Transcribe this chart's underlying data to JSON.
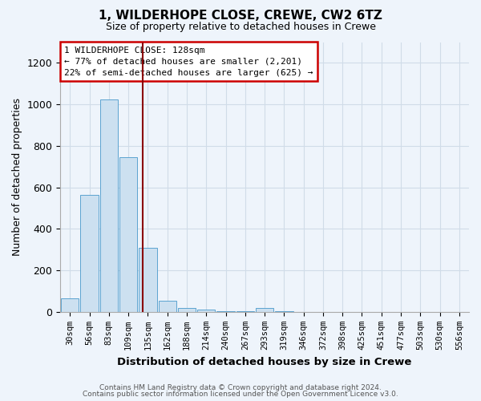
{
  "title1": "1, WILDERHOPE CLOSE, CREWE, CW2 6TZ",
  "title2": "Size of property relative to detached houses in Crewe",
  "xlabel": "Distribution of detached houses by size in Crewe",
  "ylabel": "Number of detached properties",
  "bar_labels": [
    "30sqm",
    "56sqm",
    "83sqm",
    "109sqm",
    "135sqm",
    "162sqm",
    "188sqm",
    "214sqm",
    "240sqm",
    "267sqm",
    "293sqm",
    "319sqm",
    "346sqm",
    "372sqm",
    "398sqm",
    "425sqm",
    "451sqm",
    "477sqm",
    "503sqm",
    "530sqm",
    "556sqm"
  ],
  "bar_values": [
    65,
    565,
    1025,
    745,
    310,
    55,
    20,
    10,
    5,
    5,
    20,
    5,
    0,
    0,
    0,
    0,
    0,
    0,
    0,
    0,
    0
  ],
  "bar_color": "#cce0f0",
  "bar_edge_color": "#5ba3d0",
  "vline_color": "#8b0000",
  "annotation_text": "1 WILDERHOPE CLOSE: 128sqm\n← 77% of detached houses are smaller (2,201)\n22% of semi-detached houses are larger (625) →",
  "annotation_box_color": "#ffffff",
  "annotation_box_edge": "#cc0000",
  "ylim": [
    0,
    1300
  ],
  "yticks": [
    0,
    200,
    400,
    600,
    800,
    1000,
    1200
  ],
  "footer1": "Contains HM Land Registry data © Crown copyright and database right 2024.",
  "footer2": "Contains public sector information licensed under the Open Government Licence v3.0.",
  "bg_color": "#eef4fb",
  "grid_color": "#d0dce8"
}
